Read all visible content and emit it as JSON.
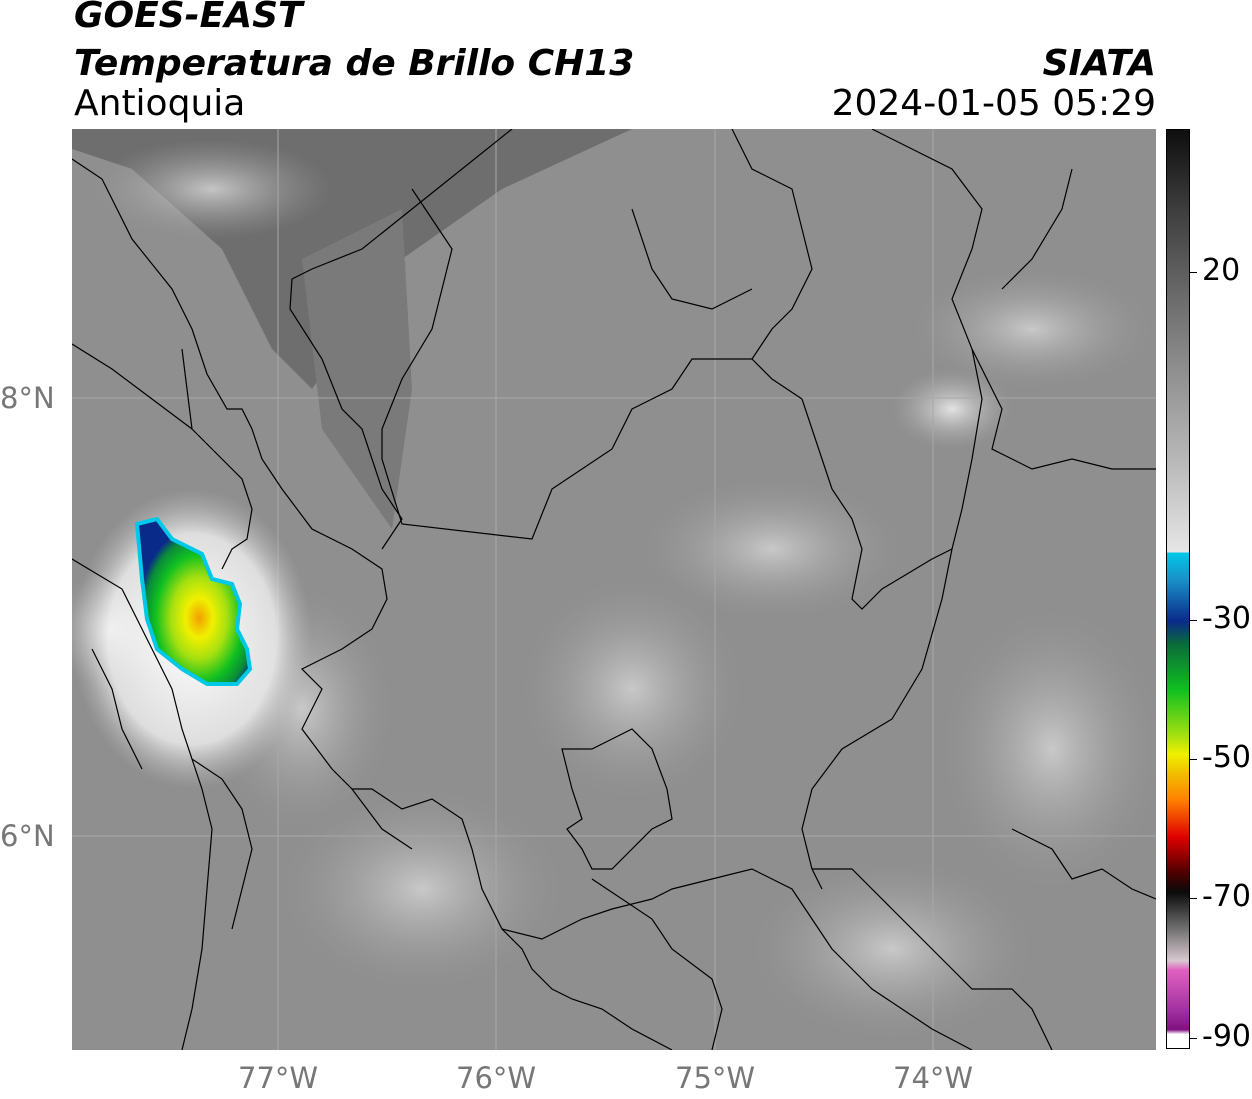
{
  "header": {
    "line1": "GOES-EAST",
    "line2": "Temperatura de Brillo CH13",
    "line3": "Antioquia",
    "brand": "SIATA",
    "datetime": "2024-01-05 05:29"
  },
  "map": {
    "lat_ticks": [
      "8°N",
      "6°N"
    ],
    "lon_ticks": [
      "77°W",
      "76°W",
      "75°W",
      "74°W"
    ],
    "background_color": "#8a8a8a",
    "border_color": "#000000"
  },
  "colorbar": {
    "labels": [
      "20",
      "-30",
      "-50",
      "-70",
      "-90"
    ],
    "colors": {
      "warm_top": "#1a1a1a",
      "gray_mid": "#9a9a9a",
      "white": "#ffffff",
      "cyan": "#00c8e8",
      "blue": "#0a2a8a",
      "green": "#10c020",
      "yellow": "#f0f000",
      "orange": "#ff8000",
      "red": "#e00000",
      "dark": "#200000",
      "pink": "#e060c0",
      "purple": "#801080"
    }
  }
}
